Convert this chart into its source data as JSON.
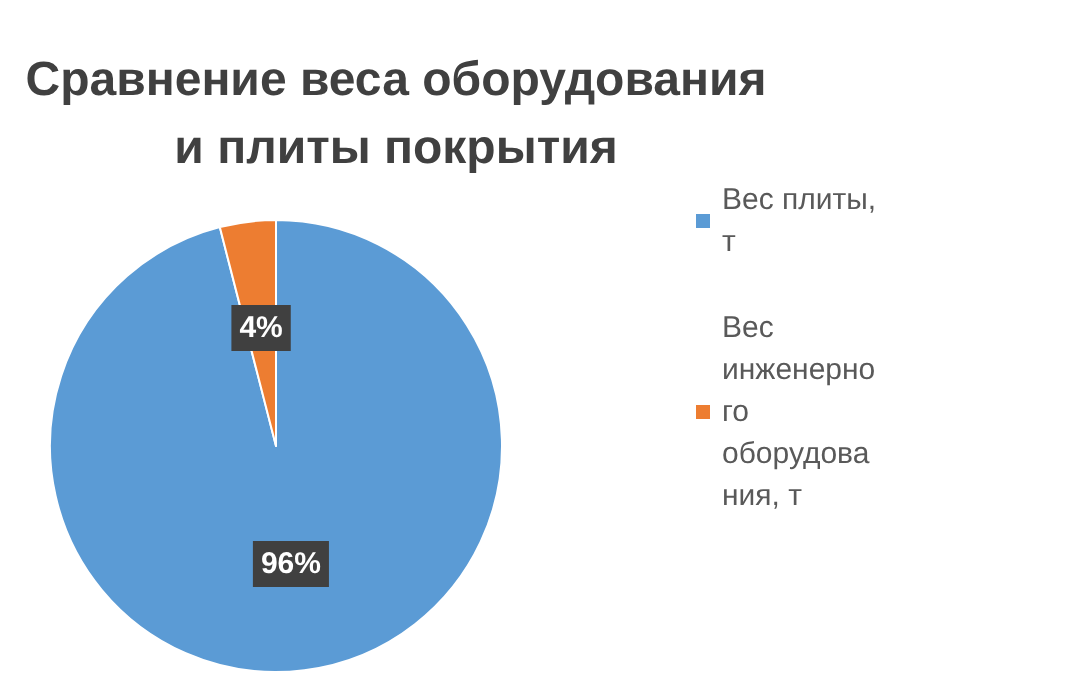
{
  "chart_data": {
    "type": "pie",
    "title": "Сравнение веса оборудования\nи плиты покрытия",
    "categories": [
      "Вес плиты, т",
      "Вес инженерного оборудования, т"
    ],
    "values": [
      96,
      4
    ],
    "colors": [
      "#5b9bd5",
      "#ed7d31"
    ],
    "value_labels": [
      "96%",
      "4%"
    ],
    "legend": "right"
  }
}
